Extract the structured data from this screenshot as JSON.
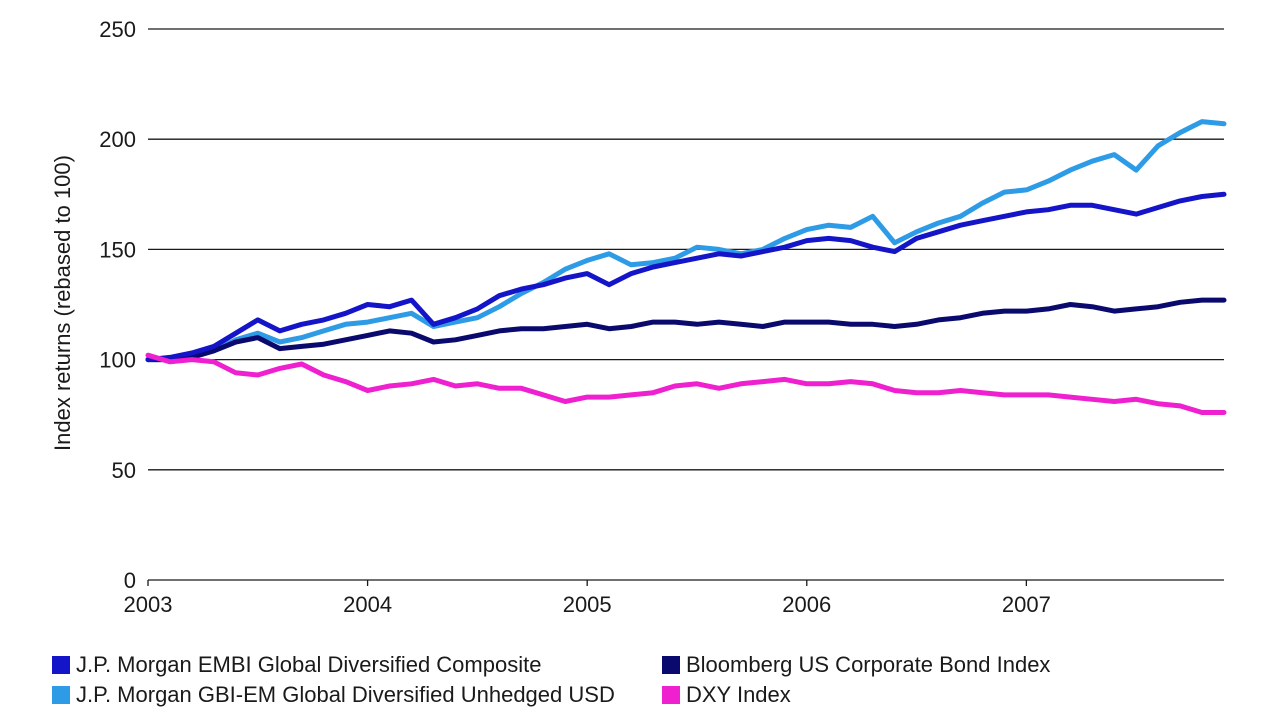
{
  "chart_data": {
    "type": "line",
    "title": "",
    "xlabel": "",
    "ylabel": "Index returns (rebased to 100)",
    "ylim": [
      0,
      250
    ],
    "xlim": [
      2003.0,
      2007.9
    ],
    "yticks": [
      "0",
      "50",
      "100",
      "150",
      "200",
      "250"
    ],
    "xticks": [
      "2003",
      "2004",
      "2005",
      "2006",
      "2007"
    ],
    "x": [
      2003.0,
      2003.1,
      2003.2,
      2003.3,
      2003.4,
      2003.5,
      2003.6,
      2003.7,
      2003.8,
      2003.9,
      2004.0,
      2004.1,
      2004.2,
      2004.3,
      2004.4,
      2004.5,
      2004.6,
      2004.7,
      2004.8,
      2004.9,
      2005.0,
      2005.1,
      2005.2,
      2005.3,
      2005.4,
      2005.5,
      2005.6,
      2005.7,
      2005.8,
      2005.9,
      2006.0,
      2006.1,
      2006.2,
      2006.3,
      2006.4,
      2006.5,
      2006.6,
      2006.7,
      2006.8,
      2006.9,
      2007.0,
      2007.1,
      2007.2,
      2007.3,
      2007.4,
      2007.5,
      2007.6,
      2007.7,
      2007.8,
      2007.9
    ],
    "series": [
      {
        "name": "J.P. Morgan EMBI Global Diversified Composite",
        "color": "#1414c8",
        "values": [
          100,
          101,
          103,
          106,
          112,
          118,
          113,
          116,
          118,
          121,
          125,
          124,
          127,
          116,
          119,
          123,
          129,
          132,
          134,
          137,
          139,
          134,
          139,
          142,
          144,
          146,
          148,
          147,
          149,
          151,
          154,
          155,
          154,
          151,
          149,
          155,
          158,
          161,
          163,
          165,
          167,
          168,
          170,
          170,
          168,
          166,
          169,
          172,
          174,
          175
        ]
      },
      {
        "name": "J.P. Morgan GBI-EM Global Diversified Unhedged USD",
        "color": "#2d9be6",
        "values": [
          100,
          100,
          102,
          104,
          109,
          112,
          108,
          110,
          113,
          116,
          117,
          119,
          121,
          115,
          117,
          119,
          124,
          130,
          135,
          141,
          145,
          148,
          143,
          144,
          146,
          151,
          150,
          148,
          150,
          155,
          159,
          161,
          160,
          165,
          153,
          158,
          162,
          165,
          171,
          176,
          177,
          181,
          186,
          190,
          193,
          186,
          197,
          203,
          208,
          207
        ]
      },
      {
        "name": "Bloomberg US Corporate Bond Index",
        "color": "#0a0a6e",
        "values": [
          100,
          100,
          101,
          104,
          108,
          110,
          105,
          106,
          107,
          109,
          111,
          113,
          112,
          108,
          109,
          111,
          113,
          114,
          114,
          115,
          116,
          114,
          115,
          117,
          117,
          116,
          117,
          116,
          115,
          117,
          117,
          117,
          116,
          116,
          115,
          116,
          118,
          119,
          121,
          122,
          122,
          123,
          125,
          124,
          122,
          123,
          124,
          126,
          127,
          127
        ]
      },
      {
        "name": "DXY Index",
        "color": "#ee20d0",
        "values": [
          102,
          99,
          100,
          99,
          94,
          93,
          96,
          98,
          93,
          90,
          86,
          88,
          89,
          91,
          88,
          89,
          87,
          87,
          84,
          81,
          83,
          83,
          84,
          85,
          88,
          89,
          87,
          89,
          90,
          91,
          89,
          89,
          90,
          89,
          86,
          85,
          85,
          86,
          85,
          84,
          84,
          84,
          83,
          82,
          81,
          82,
          80,
          79,
          76,
          76
        ]
      }
    ],
    "legend_position": "bottom"
  }
}
